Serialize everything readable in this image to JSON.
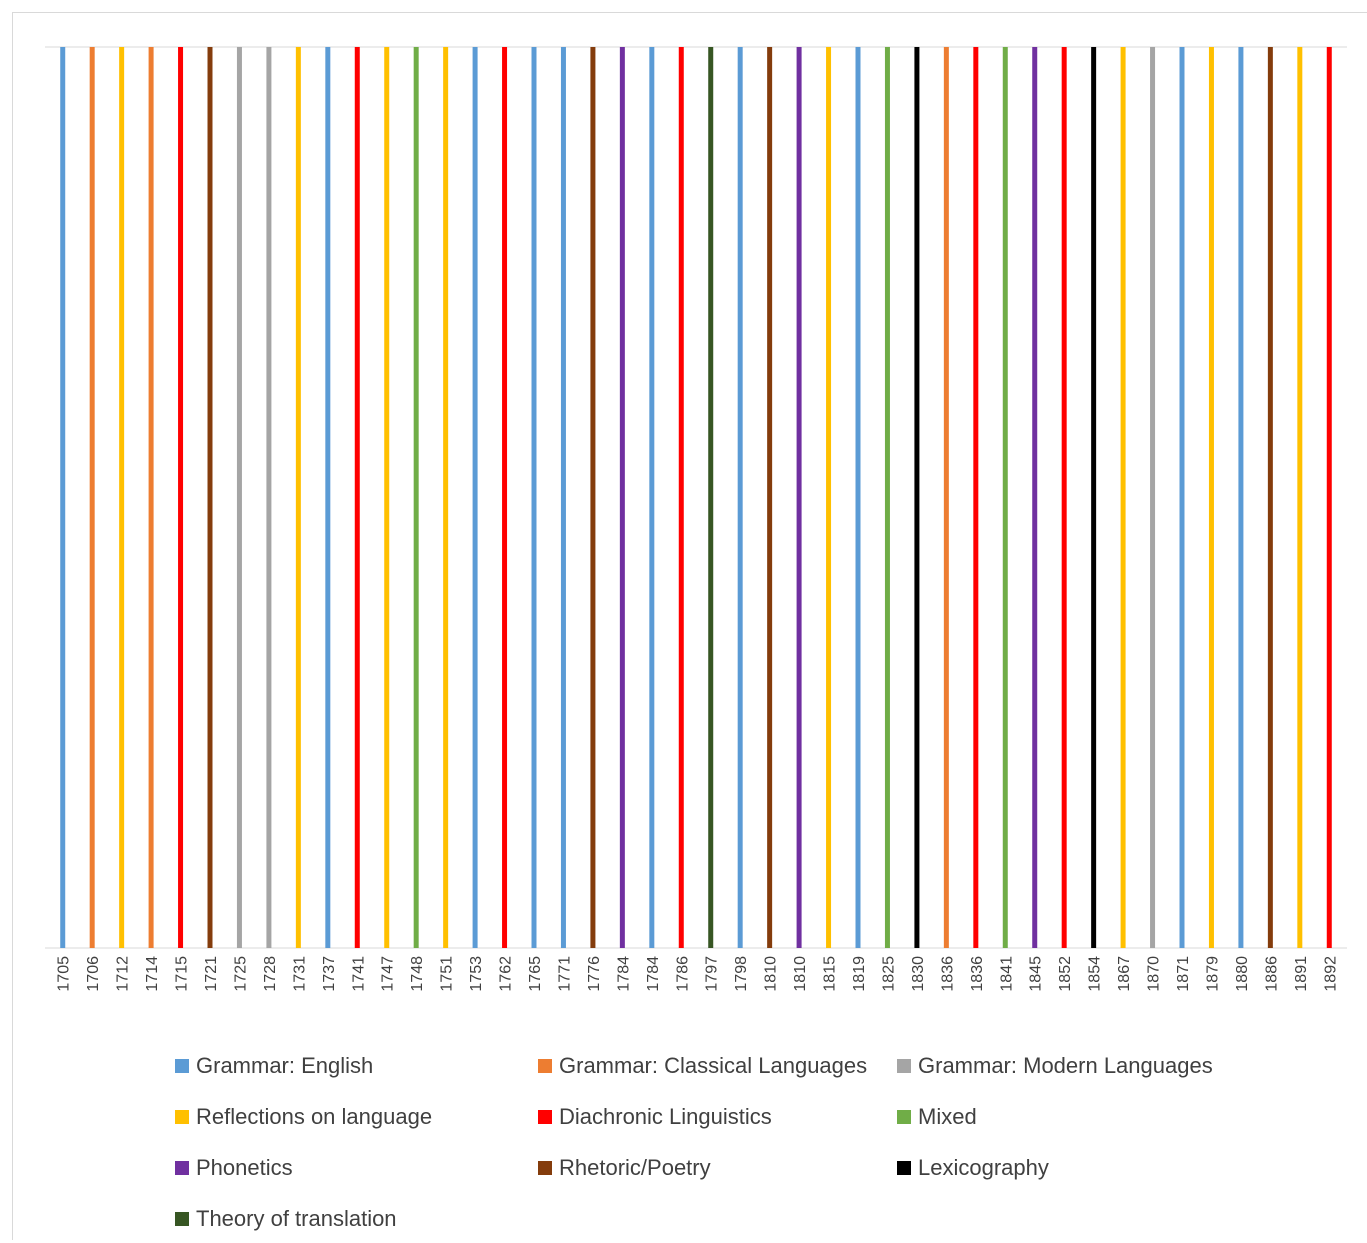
{
  "chart_data": {
    "type": "bar",
    "title": "",
    "xlabel": "",
    "ylabel": "",
    "categories": [
      "1705",
      "1706",
      "1712",
      "1714",
      "1715",
      "1721",
      "1725",
      "1728",
      "1731",
      "1737",
      "1741",
      "1747",
      "1748",
      "1751",
      "1753",
      "1762",
      "1765",
      "1771",
      "1776",
      "1784",
      "1784",
      "1786",
      "1797",
      "1798",
      "1810",
      "1810",
      "1815",
      "1819",
      "1825",
      "1830",
      "1836",
      "1836",
      "1841",
      "1845",
      "1852",
      "1854",
      "1867",
      "1870",
      "1871",
      "1879",
      "1880",
      "1886",
      "1891",
      "1892"
    ],
    "series": [
      {
        "name": "Grammar: English",
        "color": "#5b9bd5",
        "values": [
          1,
          0,
          0,
          0,
          0,
          0,
          0,
          0,
          0,
          1,
          0,
          0,
          0,
          0,
          1,
          0,
          1,
          1,
          0,
          0,
          1,
          0,
          0,
          1,
          0,
          0,
          0,
          1,
          0,
          0,
          0,
          0,
          0,
          0,
          0,
          0,
          0,
          0,
          1,
          0,
          1,
          0,
          0,
          0
        ]
      },
      {
        "name": "Grammar: Classical Languages",
        "color": "#ed7d31",
        "values": [
          0,
          1,
          0,
          1,
          0,
          0,
          0,
          0,
          0,
          0,
          0,
          0,
          0,
          0,
          0,
          0,
          0,
          0,
          0,
          0,
          0,
          0,
          0,
          0,
          0,
          0,
          0,
          0,
          0,
          0,
          1,
          0,
          0,
          0,
          0,
          0,
          0,
          0,
          0,
          0,
          0,
          0,
          0,
          0
        ]
      },
      {
        "name": "Grammar: Modern Languages",
        "color": "#a5a5a5",
        "values": [
          0,
          0,
          0,
          0,
          0,
          0,
          1,
          1,
          0,
          0,
          0,
          0,
          0,
          0,
          0,
          0,
          0,
          0,
          0,
          0,
          0,
          0,
          0,
          0,
          0,
          0,
          0,
          0,
          0,
          0,
          0,
          0,
          0,
          0,
          0,
          0,
          0,
          1,
          0,
          0,
          0,
          0,
          0,
          0
        ]
      },
      {
        "name": "Reflections on language",
        "color": "#ffc000",
        "values": [
          0,
          0,
          1,
          0,
          0,
          0,
          0,
          0,
          1,
          0,
          0,
          1,
          0,
          1,
          0,
          0,
          0,
          0,
          0,
          0,
          0,
          0,
          0,
          0,
          0,
          0,
          1,
          0,
          0,
          0,
          0,
          0,
          0,
          0,
          0,
          0,
          1,
          0,
          0,
          1,
          0,
          0,
          1,
          0
        ]
      },
      {
        "name": "Diachronic Linguistics",
        "color": "#ff0000",
        "values": [
          0,
          0,
          0,
          0,
          1,
          0,
          0,
          0,
          0,
          0,
          1,
          0,
          0,
          0,
          0,
          1,
          0,
          0,
          0,
          0,
          0,
          1,
          0,
          0,
          0,
          0,
          0,
          0,
          0,
          0,
          0,
          1,
          0,
          0,
          1,
          0,
          0,
          0,
          0,
          0,
          0,
          0,
          0,
          1
        ]
      },
      {
        "name": "Mixed",
        "color": "#70ad47",
        "values": [
          0,
          0,
          0,
          0,
          0,
          0,
          0,
          0,
          0,
          0,
          0,
          0,
          1,
          0,
          0,
          0,
          0,
          0,
          0,
          0,
          0,
          0,
          0,
          0,
          0,
          0,
          0,
          0,
          1,
          0,
          0,
          0,
          1,
          0,
          0,
          0,
          0,
          0,
          0,
          0,
          0,
          0,
          0,
          0
        ]
      },
      {
        "name": "Phonetics",
        "color": "#7030a0",
        "values": [
          0,
          0,
          0,
          0,
          0,
          0,
          0,
          0,
          0,
          0,
          0,
          0,
          0,
          0,
          0,
          0,
          0,
          0,
          0,
          1,
          0,
          0,
          0,
          0,
          0,
          1,
          0,
          0,
          0,
          0,
          0,
          0,
          0,
          1,
          0,
          0,
          0,
          0,
          0,
          0,
          0,
          0,
          0,
          0
        ]
      },
      {
        "name": "Rhetoric/Poetry",
        "color": "#843c0c",
        "values": [
          0,
          0,
          0,
          0,
          0,
          1,
          0,
          0,
          0,
          0,
          0,
          0,
          0,
          0,
          0,
          0,
          0,
          0,
          1,
          0,
          0,
          0,
          0,
          0,
          1,
          0,
          0,
          0,
          0,
          0,
          0,
          0,
          0,
          0,
          0,
          0,
          0,
          0,
          0,
          0,
          0,
          1,
          0,
          0
        ]
      },
      {
        "name": "Lexicography",
        "color": "#000000",
        "values": [
          0,
          0,
          0,
          0,
          0,
          0,
          0,
          0,
          0,
          0,
          0,
          0,
          0,
          0,
          0,
          0,
          0,
          0,
          0,
          0,
          0,
          0,
          0,
          0,
          0,
          0,
          0,
          0,
          0,
          1,
          0,
          0,
          0,
          0,
          0,
          1,
          0,
          0,
          0,
          0,
          0,
          0,
          0,
          0
        ]
      },
      {
        "name": "Theory of translation",
        "color": "#375623",
        "values": [
          0,
          0,
          0,
          0,
          0,
          0,
          0,
          0,
          0,
          0,
          0,
          0,
          0,
          0,
          0,
          0,
          0,
          0,
          0,
          0,
          0,
          0,
          1,
          0,
          0,
          0,
          0,
          0,
          0,
          0,
          0,
          0,
          0,
          0,
          0,
          0,
          0,
          0,
          0,
          0,
          0,
          0,
          0,
          0
        ]
      }
    ],
    "ylim": [
      0,
      1
    ],
    "grid": false,
    "legend_position": "bottom"
  }
}
